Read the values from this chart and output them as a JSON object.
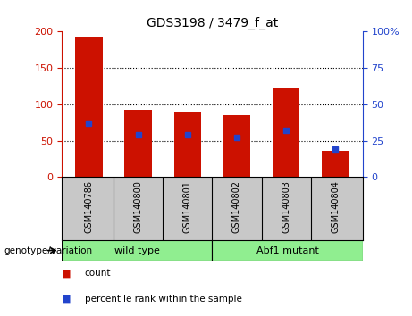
{
  "title": "GDS3198 / 3479_f_at",
  "samples": [
    "GSM140786",
    "GSM140800",
    "GSM140801",
    "GSM140802",
    "GSM140803",
    "GSM140804"
  ],
  "counts": [
    193,
    93,
    89,
    85,
    122,
    36
  ],
  "percentile_ranks": [
    37,
    29,
    29,
    27,
    32,
    19
  ],
  "left_ylim": [
    0,
    200
  ],
  "right_ylim": [
    0,
    100
  ],
  "left_yticks": [
    0,
    50,
    100,
    150,
    200
  ],
  "right_yticks": [
    0,
    25,
    50,
    75,
    100
  ],
  "right_yticklabels": [
    "0",
    "25",
    "50",
    "75",
    "100%"
  ],
  "bar_color": "#cc1100",
  "marker_color": "#2244cc",
  "label_area_bg": "#c8c8c8",
  "group_color": "#90EE90",
  "genotype_label": "genotype/variation",
  "group1_label": "wild type",
  "group2_label": "Abf1 mutant",
  "legend_count": "count",
  "legend_pct": "percentile rank within the sample"
}
